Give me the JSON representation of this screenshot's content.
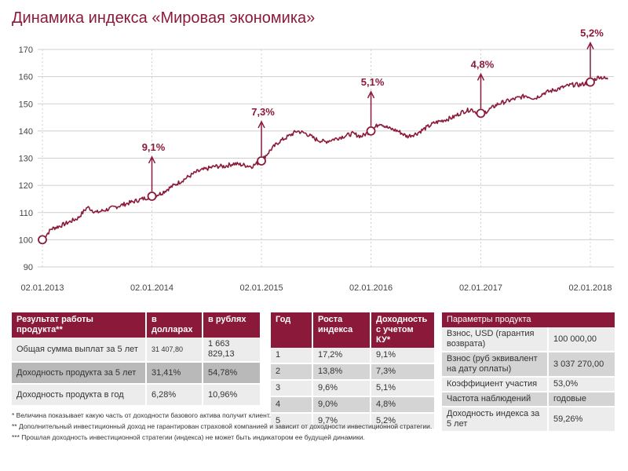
{
  "title": "Динамика индекса «Мировая экономика»",
  "colors": {
    "accent": "#8b1a3a",
    "grid": "#cccccc",
    "row_light": "#ececec",
    "row_dark": "#d4d4d4"
  },
  "chart_data": {
    "type": "line",
    "title": "",
    "xlabel": "",
    "ylabel": "",
    "ylim": [
      90,
      170
    ],
    "yticks": [
      90,
      100,
      110,
      120,
      130,
      140,
      150,
      160,
      170
    ],
    "xtick_labels": [
      "02.01.2013",
      "02.01.2014",
      "02.01.2015",
      "02.01.2016",
      "02.01.2017",
      "02.01.2018"
    ],
    "xtick_dates": [
      "2013-01-02",
      "2014-01-02",
      "2015-01-02",
      "2016-01-02",
      "2017-01-02",
      "2018-01-02"
    ],
    "grid": true,
    "series": [
      {
        "x": [
          "2013-01-02",
          "2013-02-01",
          "2013-03-01",
          "2013-04-01",
          "2013-05-01",
          "2013-06-01",
          "2013-07-01",
          "2013-08-01",
          "2013-09-01",
          "2013-10-01",
          "2013-11-01",
          "2013-12-01",
          "2014-01-02",
          "2014-02-01",
          "2014-03-01",
          "2014-04-01",
          "2014-05-01",
          "2014-06-01",
          "2014-07-01",
          "2014-08-01",
          "2014-09-01",
          "2014-10-01",
          "2014-11-01",
          "2014-12-01",
          "2015-01-02",
          "2015-02-01",
          "2015-03-01",
          "2015-04-01",
          "2015-05-01",
          "2015-06-01",
          "2015-07-01",
          "2015-08-01",
          "2015-09-01",
          "2015-10-01",
          "2015-11-01",
          "2015-12-01",
          "2016-01-02",
          "2016-02-01",
          "2016-03-01",
          "2016-04-01",
          "2016-05-01",
          "2016-06-01",
          "2016-07-01",
          "2016-08-01",
          "2016-09-01",
          "2016-10-01",
          "2016-11-01",
          "2016-12-01",
          "2017-01-02",
          "2017-02-01",
          "2017-03-01",
          "2017-04-01",
          "2017-05-01",
          "2017-06-01",
          "2017-07-01",
          "2017-08-01",
          "2017-09-01",
          "2017-10-01",
          "2017-11-01",
          "2017-12-01",
          "2018-01-02",
          "2018-02-01",
          "2018-03-01"
        ],
        "values": [
          100,
          104,
          105,
          106.5,
          108,
          112,
          110,
          111,
          112,
          113,
          114,
          115,
          116,
          117,
          119,
          121,
          123,
          125,
          126,
          127,
          127,
          128,
          127.5,
          127,
          129,
          133,
          136,
          138,
          140,
          139,
          137,
          136,
          137,
          138,
          139,
          138,
          140,
          143,
          141,
          140,
          138,
          139,
          141,
          143,
          144,
          145,
          147,
          148,
          146,
          148,
          150,
          151,
          152,
          153,
          152,
          154,
          155,
          156,
          157,
          157,
          158,
          160,
          159
        ],
        "point_pattern": "daily-noise"
      }
    ],
    "annotations": [
      {
        "x": "2014-01-02",
        "y": 116,
        "label": "9,1%"
      },
      {
        "x": "2015-01-02",
        "y": 129,
        "label": "7,3%"
      },
      {
        "x": "2016-01-02",
        "y": 140,
        "label": "5,1%"
      },
      {
        "x": "2017-01-02",
        "y": 146.5,
        "label": "4,8%"
      },
      {
        "x": "2018-01-02",
        "y": 158,
        "label": "5,2%"
      }
    ],
    "start_marker": {
      "x": "2013-01-02",
      "y": 100
    }
  },
  "table_result": {
    "headers": [
      "Результат работы продукта**",
      "в долларах",
      "в рублях"
    ],
    "rows": [
      [
        "Общая сумма выплат за 5 лет",
        "31 407,80",
        "1 663 829,13"
      ],
      [
        "Доходность продукта за 5 лет",
        "31,41%",
        "54,78%"
      ],
      [
        "Доходность продукта в год",
        "6,28%",
        "10,96%"
      ]
    ]
  },
  "table_years": {
    "headers": [
      "Год",
      "Роста индекса",
      "Доходность с учетом КУ*"
    ],
    "rows": [
      [
        "1",
        "17,2%",
        "9,1%"
      ],
      [
        "2",
        "13,8%",
        "7,3%"
      ],
      [
        "3",
        "9,6%",
        "5,1%"
      ],
      [
        "4",
        "9,0%",
        "4,8%"
      ],
      [
        "5",
        "9,7%",
        "5,2%"
      ]
    ]
  },
  "table_params": {
    "header": "Параметры продукта",
    "rows": [
      [
        "Взнос, USD (гарантия возврата)",
        "100 000,00"
      ],
      [
        "Взнос (руб эквивалент на дату оплаты)",
        "3 037 270,00"
      ],
      [
        "Коэффициент участия",
        "53,0%"
      ],
      [
        "Частота наблюдений",
        "годовые"
      ],
      [
        "Доходность индекса за 5 лет",
        "59,26%"
      ]
    ]
  },
  "notes": [
    "*   Величина показывает какую часть от доходности базового актива получит клиент.",
    "**  Дополнительный инвестиционный доход не гарантирован страховой компанией и зависит от доходности инвестиционной стратегии.",
    "*** Прошлая доходность инвестиционной стратегии (индекса) не может быть индикатором ее будущей динамики."
  ]
}
